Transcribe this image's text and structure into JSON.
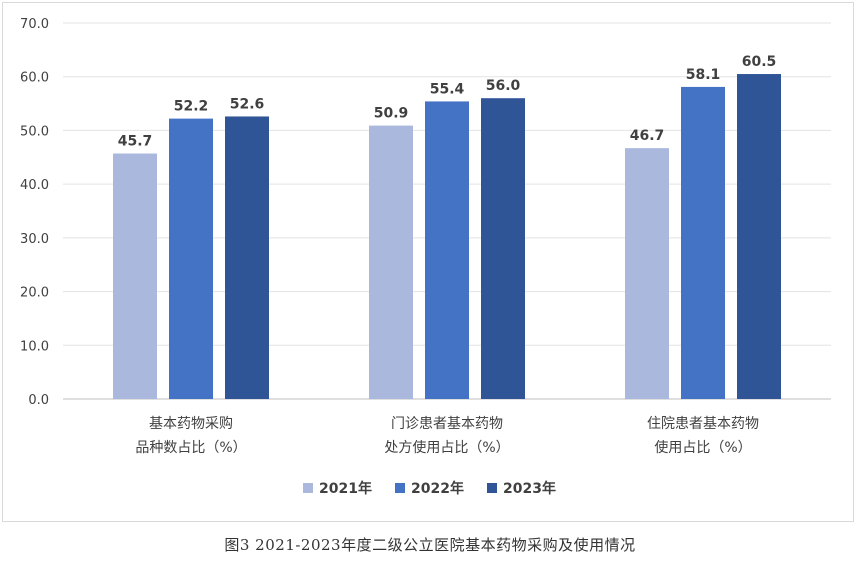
{
  "chart_data": {
    "type": "bar",
    "categories": [
      [
        "基本药物采购",
        "品种数占比（%）"
      ],
      [
        "门诊患者基本药物",
        "处方使用占比（%）"
      ],
      [
        "住院患者基本药物",
        "使用占比（%）"
      ]
    ],
    "series": [
      {
        "name": "2021年",
        "values": [
          45.7,
          50.9,
          46.7
        ],
        "color": "#a9b8dc"
      },
      {
        "name": "2022年",
        "values": [
          52.2,
          55.4,
          58.1
        ],
        "color": "#4472c4"
      },
      {
        "name": "2023年",
        "values": [
          52.6,
          56.0,
          60.5
        ],
        "color": "#2f5597"
      }
    ],
    "ylim": [
      0,
      70
    ],
    "yticks": [
      "0.0",
      "10.0",
      "20.0",
      "30.0",
      "40.0",
      "50.0",
      "60.0",
      "70.0"
    ],
    "grid": true,
    "legend": "bottom"
  },
  "caption": "图3 2021-2023年度二级公立医院基本药物采购及使用情况"
}
